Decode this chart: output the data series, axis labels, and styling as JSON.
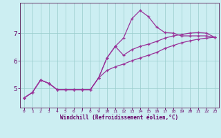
{
  "xlabel": "Windchill (Refroidissement éolien,°C)",
  "bg_color": "#cceef2",
  "line_color": "#993399",
  "grid_color": "#99cccc",
  "axis_color": "#663366",
  "text_color": "#660066",
  "xlim": [
    -0.5,
    23.5
  ],
  "ylim": [
    4.3,
    8.1
  ],
  "yticks": [
    5,
    6,
    7
  ],
  "xticks": [
    0,
    1,
    2,
    3,
    4,
    5,
    6,
    7,
    8,
    9,
    10,
    11,
    12,
    13,
    14,
    15,
    16,
    17,
    18,
    19,
    20,
    21,
    22,
    23
  ],
  "hours": [
    0,
    1,
    2,
    3,
    4,
    5,
    6,
    7,
    8,
    9,
    10,
    11,
    12,
    13,
    14,
    15,
    16,
    17,
    18,
    19,
    20,
    21,
    22,
    23
  ],
  "main_line": [
    4.65,
    4.85,
    5.3,
    5.18,
    4.95,
    4.95,
    4.95,
    4.95,
    4.95,
    5.38,
    6.1,
    6.52,
    6.82,
    7.52,
    7.82,
    7.6,
    7.22,
    7.02,
    7.0,
    6.9,
    6.9,
    6.9,
    6.9,
    6.85
  ],
  "upper_line": [
    4.65,
    4.85,
    5.3,
    5.18,
    4.95,
    4.95,
    4.95,
    4.95,
    4.95,
    5.38,
    6.1,
    6.52,
    6.2,
    6.4,
    6.52,
    6.6,
    6.7,
    6.82,
    6.9,
    6.95,
    7.0,
    7.02,
    7.0,
    6.85
  ],
  "lower_line": [
    4.65,
    4.85,
    5.3,
    5.18,
    4.95,
    4.95,
    4.95,
    4.95,
    4.95,
    5.38,
    5.65,
    5.78,
    5.88,
    6.0,
    6.1,
    6.2,
    6.3,
    6.45,
    6.55,
    6.65,
    6.72,
    6.78,
    6.82,
    6.85
  ]
}
